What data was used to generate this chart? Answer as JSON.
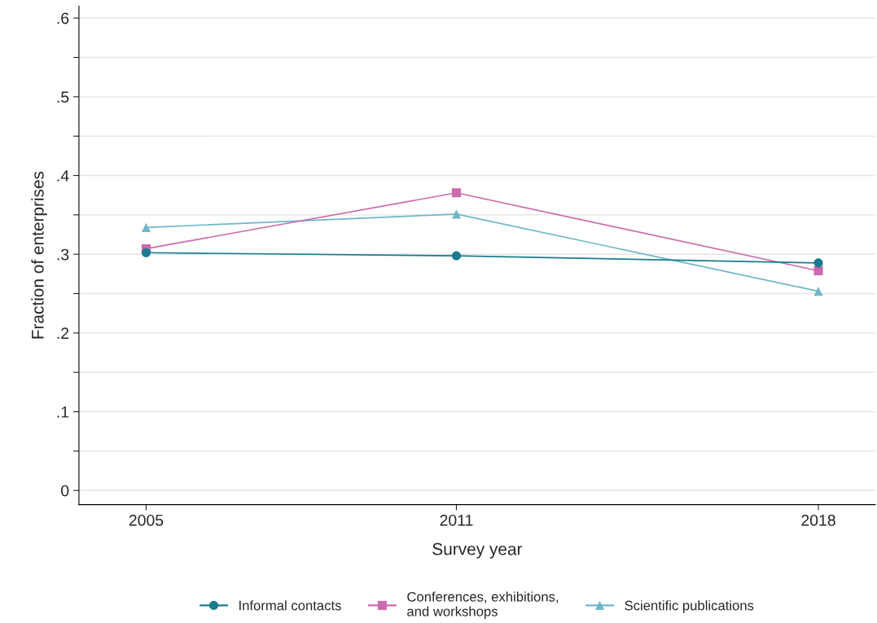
{
  "chart_data": {
    "type": "line",
    "xlabel": "Survey year",
    "ylabel": "Fraction of enterprises",
    "x": [
      2005,
      2011,
      2018
    ],
    "series": [
      {
        "name": "Informal contacts",
        "color": "#1a7b8f",
        "marker": "circle",
        "values": [
          0.302,
          0.298,
          0.289
        ]
      },
      {
        "name": "Conferences, exhibitions,\nand workshops",
        "color": "#cc6aae",
        "marker": "square",
        "values": [
          0.307,
          0.378,
          0.279
        ]
      },
      {
        "name": "Scientific publications",
        "color": "#6fb7c8",
        "marker": "triangle",
        "values": [
          0.334,
          0.351,
          0.253
        ]
      }
    ],
    "xlim": [
      2003.7,
      2019.1
    ],
    "xticks": [
      2005,
      2011,
      2018
    ],
    "ylim": [
      -0.018,
      0.615
    ],
    "yticks": [
      0,
      {
        "value": 0.05,
        "label": null
      },
      {
        "value": 0.1,
        "label": ".1"
      },
      {
        "value": 0.15,
        "label": null
      },
      {
        "value": 0.2,
        "label": ".2"
      },
      {
        "value": 0.25,
        "label": null
      },
      {
        "value": 0.3,
        "label": ".3"
      },
      {
        "value": 0.35,
        "label": null
      },
      {
        "value": 0.4,
        "label": ".4"
      },
      {
        "value": 0.45,
        "label": null
      },
      {
        "value": 0.5,
        "label": ".5"
      },
      {
        "value": 0.55,
        "label": null
      },
      {
        "value": 0.6,
        "label": ".6"
      }
    ],
    "grid": "y",
    "legend": "bottom",
    "line_style": "solid"
  }
}
